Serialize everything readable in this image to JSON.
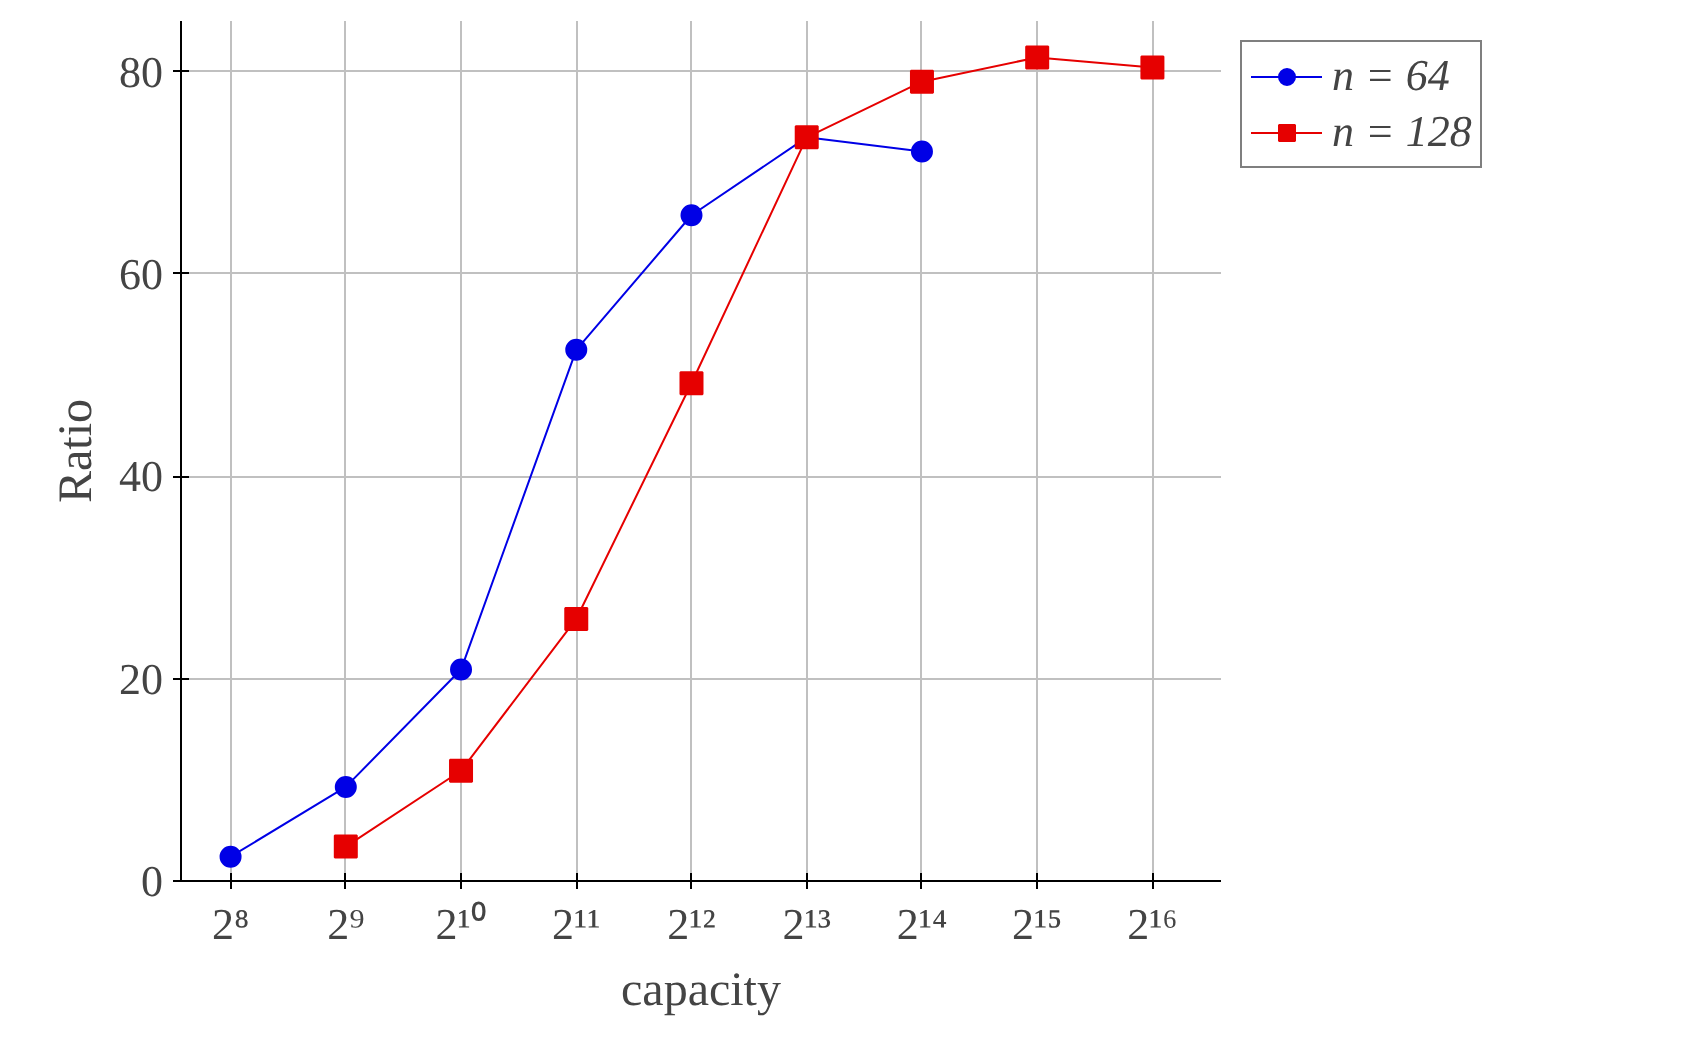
{
  "chart_data": {
    "type": "line",
    "xlabel": "capacity",
    "ylabel": "Ratio",
    "xlim": [
      190,
      99000
    ],
    "ylim": [
      0,
      85
    ],
    "log": "x",
    "xticks": [
      {
        "value": 256,
        "label": "2⁸"
      },
      {
        "value": 512,
        "label": "2⁹"
      },
      {
        "value": 1024,
        "label": "2¹⁰"
      },
      {
        "value": 2048,
        "label": "2¹¹"
      },
      {
        "value": 4096,
        "label": "2¹²"
      },
      {
        "value": 8192,
        "label": "2¹³"
      },
      {
        "value": 16384,
        "label": "2¹⁴"
      },
      {
        "value": 32768,
        "label": "2¹⁵"
      },
      {
        "value": 65536,
        "label": "2¹⁶"
      }
    ],
    "yticks": [
      0,
      20,
      40,
      60,
      80
    ],
    "grid": true,
    "legend": "top right",
    "series": [
      {
        "name": "n = 64",
        "color": "#0000e6",
        "marker": "circle",
        "x": [
          256,
          512,
          1024,
          2048,
          4096,
          8192,
          16384
        ],
        "values": [
          2.4,
          9.3,
          20.9,
          52.5,
          65.8,
          73.5,
          72.1
        ]
      },
      {
        "name": "n = 128",
        "color": "#e60000",
        "marker": "square",
        "x": [
          512,
          1024,
          2048,
          4096,
          8192,
          16384,
          32768,
          65536
        ],
        "values": [
          3.4,
          10.9,
          25.9,
          49.2,
          73.5,
          79.0,
          81.4,
          80.4
        ]
      }
    ]
  }
}
